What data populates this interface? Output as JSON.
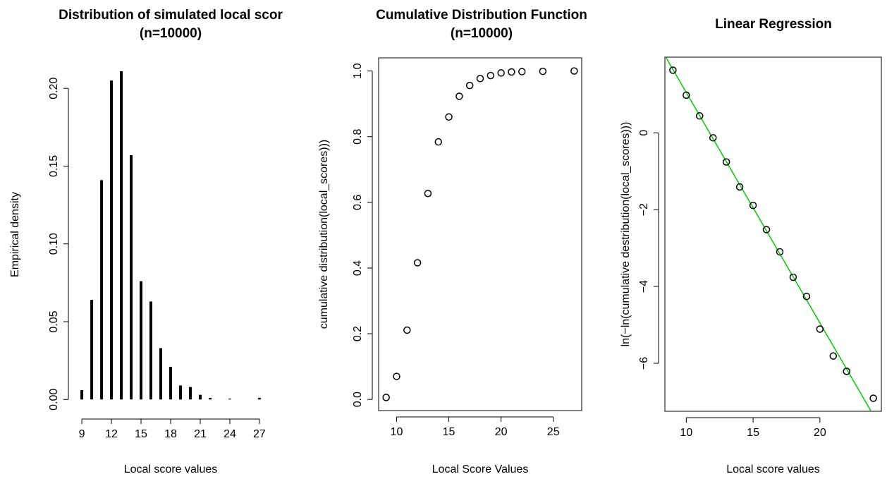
{
  "chart_data": [
    {
      "type": "bar",
      "title": "Distribution of simulated local scor",
      "subtitle": "(n=10000)",
      "x_label": "Local score values",
      "y_label": "Empirical density",
      "x": [
        9,
        10,
        11,
        12,
        13,
        14,
        15,
        16,
        17,
        18,
        19,
        20,
        21,
        22,
        24,
        27
      ],
      "values": [
        0.006,
        0.064,
        0.141,
        0.205,
        0.211,
        0.157,
        0.076,
        0.063,
        0.033,
        0.021,
        0.009,
        0.008,
        0.003,
        0.001,
        0.0005,
        0.001
      ],
      "color": "#000000",
      "frame": false,
      "xlim": [
        8.28,
        27.72
      ],
      "ylim": [
        -0.0085,
        0.2205
      ],
      "xticks": [
        9,
        12,
        15,
        18,
        21,
        24,
        27
      ],
      "yticks": [
        {
          "value": 0,
          "label": "0.00"
        },
        0.05,
        {
          "value": 0.1,
          "label": "0.10"
        },
        0.15,
        {
          "value": 0.2,
          "label": "0.20"
        }
      ]
    },
    {
      "type": "scatter",
      "title": "Cumulative Distribution Function",
      "subtitle": "(n=10000)",
      "x_label": "Local Score Values",
      "y_label": "cumulative distribution(local_scores)))",
      "x": [
        9,
        10,
        11,
        12,
        13,
        14,
        15,
        16,
        17,
        18,
        19,
        20,
        21,
        22,
        24,
        27
      ],
      "values": [
        0.006,
        0.07,
        0.211,
        0.416,
        0.627,
        0.784,
        0.86,
        0.923,
        0.956,
        0.977,
        0.986,
        0.994,
        0.997,
        0.998,
        0.999,
        1.0
      ],
      "color": "#000000",
      "frame": true,
      "xlim": [
        8.28,
        27.72
      ],
      "ylim": [
        -0.034,
        1.04
      ],
      "xticks": [
        10,
        15,
        20,
        25
      ],
      "yticks": [
        {
          "value": 0,
          "label": "0.0"
        },
        0.2,
        0.4,
        0.6,
        0.8,
        {
          "value": 1,
          "label": "1.0"
        }
      ]
    },
    {
      "type": "scatter",
      "title": "Linear Regression",
      "x_label": "Local score values",
      "y_label": "ln(−ln(cumulative destribution(local_scores)))",
      "x": [
        9,
        10,
        11,
        12,
        13,
        14,
        15,
        16,
        17,
        18,
        19,
        20,
        21,
        22,
        24
      ],
      "values": [
        1.63,
        0.98,
        0.44,
        -0.13,
        -0.76,
        -1.41,
        -1.89,
        -2.52,
        -3.1,
        -3.76,
        -4.26,
        -5.11,
        -5.81,
        -6.21,
        -6.91
      ],
      "color": "#000000",
      "frame": true,
      "line_slope": -0.6,
      "line_intercept": 7.05,
      "line_color": "#00cc00",
      "xlim": [
        8.4,
        24.6
      ],
      "ylim": [
        -7.25,
        1.97
      ],
      "xticks": [
        10,
        15,
        20
      ],
      "yticks": [
        {
          "value": -6,
          "label": "−6"
        },
        {
          "value": -4,
          "label": "−4"
        },
        {
          "value": -2,
          "label": "−2"
        },
        0
      ]
    }
  ]
}
